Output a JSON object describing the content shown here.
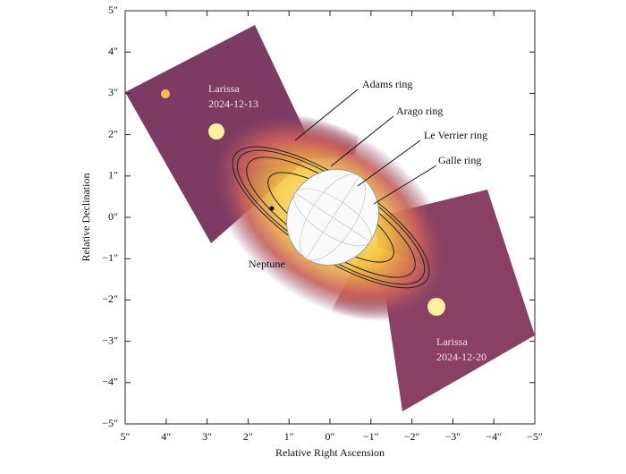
{
  "chart_data": {
    "type": "image",
    "xlabel": "Relative Right Ascension",
    "ylabel": "Relative Declination",
    "xlim": [
      5,
      -5
    ],
    "ylim": [
      -5,
      5
    ],
    "xticks": [
      {
        "value": 5,
        "label": "5″"
      },
      {
        "value": 4,
        "label": "4″"
      },
      {
        "value": 3,
        "label": "3″"
      },
      {
        "value": 2,
        "label": "2″"
      },
      {
        "value": 1,
        "label": "1″"
      },
      {
        "value": 0,
        "label": "0″"
      },
      {
        "value": -1,
        "label": "−1″"
      },
      {
        "value": -2,
        "label": "−2″"
      },
      {
        "value": -3,
        "label": "−3″"
      },
      {
        "value": -4,
        "label": "−4″"
      },
      {
        "value": -5,
        "label": "−5″"
      }
    ],
    "yticks": [
      {
        "value": 5,
        "label": "5″"
      },
      {
        "value": 4,
        "label": "4″"
      },
      {
        "value": 3,
        "label": "3″"
      },
      {
        "value": 2,
        "label": "2″"
      },
      {
        "value": 1,
        "label": "1″"
      },
      {
        "value": 0,
        "label": "0″"
      },
      {
        "value": -1,
        "label": "−1″"
      },
      {
        "value": -2,
        "label": "−2″"
      },
      {
        "value": -3,
        "label": "−3″"
      },
      {
        "value": -4,
        "label": "−4″"
      },
      {
        "value": -5,
        "label": "−5″"
      }
    ],
    "annotations": [
      "Adams ring",
      "Arago ring",
      "Le Verrier ring",
      "Galle ring",
      "Neptune",
      "Larissa",
      "2024-12-13",
      "Larissa",
      "2024-12-20"
    ]
  }
}
